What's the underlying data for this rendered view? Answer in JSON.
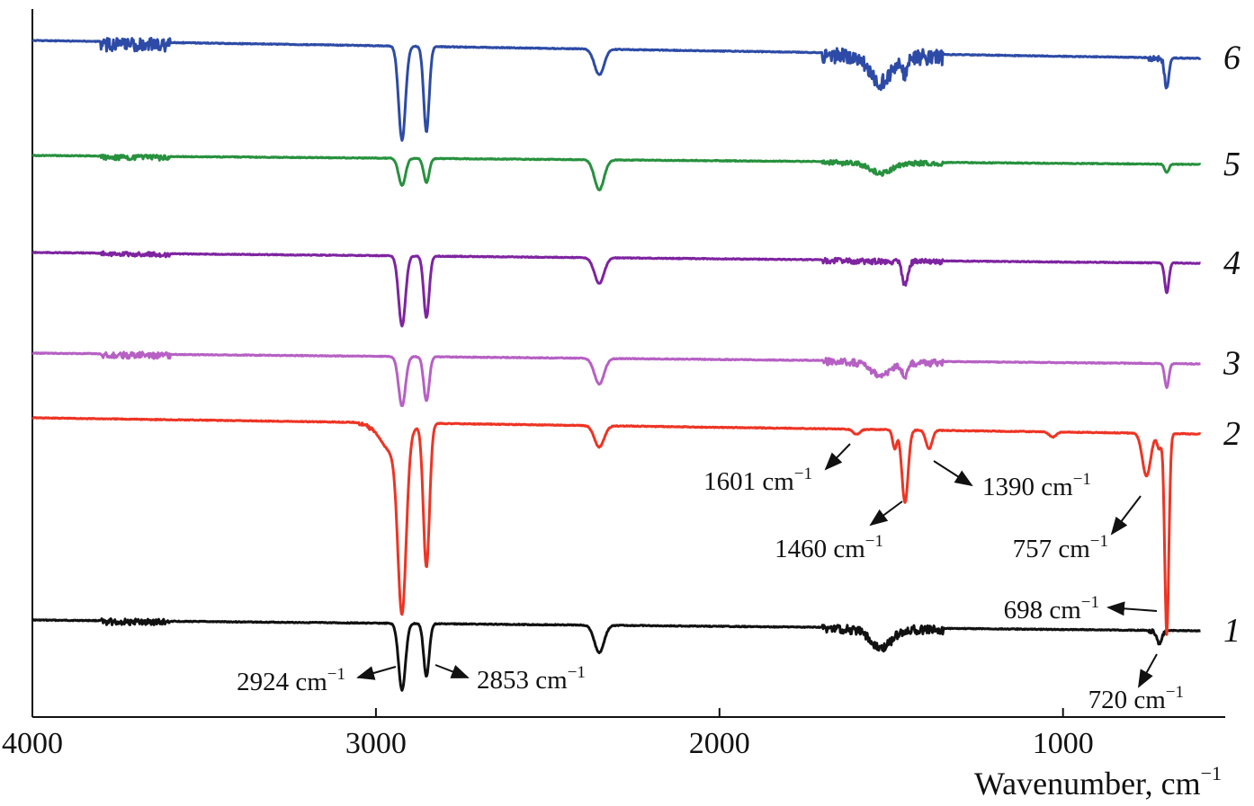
{
  "chart_data": {
    "type": "line",
    "xlabel": "Wavenumber, cm",
    "xlabel_sup": "−1",
    "x_range": [
      4000,
      600
    ],
    "x_reversed": true,
    "x_ticks": [
      4000,
      3000,
      2000,
      1000
    ],
    "x_tick_labels": [
      "4000",
      "3000",
      "2000",
      "1000"
    ],
    "y_axis_visible": true,
    "y_ticks": false,
    "grid": false,
    "series": [
      {
        "name": "1",
        "color": "#111111",
        "baseline": 0.0,
        "noise_regions": [
          [
            3800,
            3600,
            0.035
          ],
          [
            1700,
            1350,
            0.05
          ],
          [
            750,
            700,
            0.02
          ]
        ],
        "peaks": [
          {
            "x": 2924,
            "depth": 0.78,
            "width": 10
          },
          {
            "x": 2853,
            "depth": 0.62,
            "width": 8
          },
          {
            "x": 2350,
            "depth": 0.32,
            "width": 14
          },
          {
            "x": 1530,
            "depth": 0.22,
            "width": 30
          },
          {
            "x": 720,
            "depth": 0.15,
            "width": 7
          }
        ]
      },
      {
        "name": "2",
        "color": "#ee3424",
        "baseline": 0.0,
        "noise_regions": [
          [
            3050,
            3000,
            0.02
          ]
        ],
        "peaks": [
          {
            "x": 2950,
            "depth": 0.35,
            "width": 35
          },
          {
            "x": 2924,
            "depth": 1.98,
            "width": 12
          },
          {
            "x": 2853,
            "depth": 1.68,
            "width": 9
          },
          {
            "x": 2350,
            "depth": 0.25,
            "width": 14
          },
          {
            "x": 1601,
            "depth": 0.06,
            "width": 10
          },
          {
            "x": 1490,
            "depth": 0.22,
            "width": 6
          },
          {
            "x": 1460,
            "depth": 0.85,
            "width": 9
          },
          {
            "x": 1390,
            "depth": 0.22,
            "width": 9
          },
          {
            "x": 1030,
            "depth": 0.06,
            "width": 10
          },
          {
            "x": 757,
            "depth": 0.5,
            "width": 12
          },
          {
            "x": 720,
            "depth": 0.18,
            "width": 6
          },
          {
            "x": 698,
            "depth": 2.35,
            "width": 6
          }
        ]
      },
      {
        "name": "3",
        "color": "#b660c4",
        "baseline": 0.0,
        "noise_regions": [
          [
            3800,
            3600,
            0.035
          ],
          [
            1700,
            1350,
            0.04
          ]
        ],
        "peaks": [
          {
            "x": 2924,
            "depth": 0.58,
            "width": 10
          },
          {
            "x": 2853,
            "depth": 0.52,
            "width": 8
          },
          {
            "x": 2350,
            "depth": 0.3,
            "width": 14
          },
          {
            "x": 1530,
            "depth": 0.15,
            "width": 30
          },
          {
            "x": 1460,
            "depth": 0.15,
            "width": 8
          },
          {
            "x": 698,
            "depth": 0.28,
            "width": 6
          }
        ]
      },
      {
        "name": "4",
        "color": "#7e24a0",
        "baseline": 0.0,
        "noise_regions": [
          [
            3800,
            3600,
            0.025
          ],
          [
            1700,
            1350,
            0.03
          ]
        ],
        "peaks": [
          {
            "x": 2924,
            "depth": 0.82,
            "width": 10
          },
          {
            "x": 2853,
            "depth": 0.72,
            "width": 8
          },
          {
            "x": 2350,
            "depth": 0.3,
            "width": 14
          },
          {
            "x": 1460,
            "depth": 0.28,
            "width": 8
          },
          {
            "x": 698,
            "depth": 0.35,
            "width": 6
          }
        ]
      },
      {
        "name": "5",
        "color": "#27913e",
        "baseline": 0.0,
        "noise_regions": [
          [
            3800,
            3600,
            0.03
          ],
          [
            1700,
            1350,
            0.03
          ]
        ],
        "peaks": [
          {
            "x": 2924,
            "depth": 0.32,
            "width": 10
          },
          {
            "x": 2853,
            "depth": 0.28,
            "width": 8
          },
          {
            "x": 2350,
            "depth": 0.35,
            "width": 14
          },
          {
            "x": 1530,
            "depth": 0.12,
            "width": 30
          },
          {
            "x": 698,
            "depth": 0.1,
            "width": 6
          }
        ]
      },
      {
        "name": "6",
        "color": "#2d4ba6",
        "baseline": 0.0,
        "noise_regions": [
          [
            3800,
            3600,
            0.08
          ],
          [
            1700,
            1350,
            0.09
          ],
          [
            750,
            700,
            0.03
          ]
        ],
        "peaks": [
          {
            "x": 2924,
            "depth": 1.1,
            "width": 10
          },
          {
            "x": 2853,
            "depth": 1.0,
            "width": 8
          },
          {
            "x": 2350,
            "depth": 0.3,
            "width": 14
          },
          {
            "x": 1530,
            "depth": 0.3,
            "width": 30
          },
          {
            "x": 1460,
            "depth": 0.2,
            "width": 8
          },
          {
            "x": 698,
            "depth": 0.35,
            "width": 6
          }
        ]
      }
    ],
    "annotations": [
      {
        "label": "2924 cm",
        "sup": "−1",
        "series": "1",
        "x": 2924
      },
      {
        "label": "2853 cm",
        "sup": "−1",
        "series": "1",
        "x": 2853
      },
      {
        "label": "720 cm",
        "sup": "−1",
        "series": "1",
        "x": 720
      },
      {
        "label": "1601 cm",
        "sup": "−1",
        "series": "2",
        "x": 1601
      },
      {
        "label": "1390 cm",
        "sup": "−1",
        "series": "2",
        "x": 1390
      },
      {
        "label": "1460 cm",
        "sup": "−1",
        "series": "2",
        "x": 1460
      },
      {
        "label": "757 cm",
        "sup": "−1",
        "series": "2",
        "x": 757
      },
      {
        "label": "698 cm",
        "sup": "−1",
        "series": "2",
        "x": 698
      }
    ]
  }
}
